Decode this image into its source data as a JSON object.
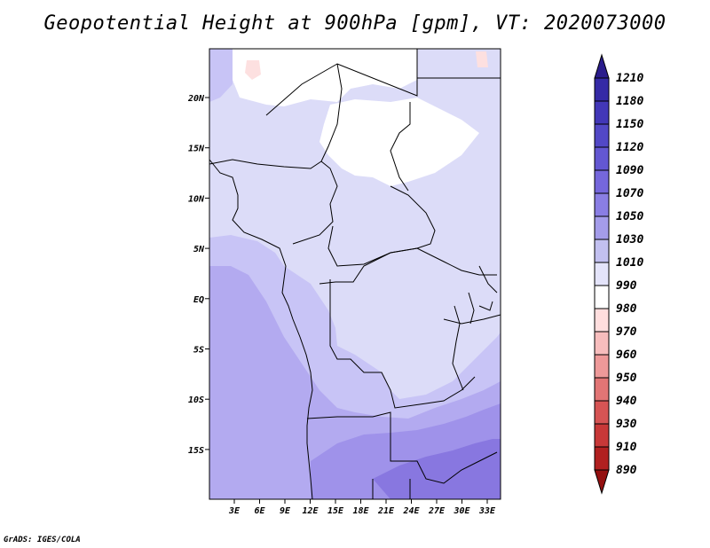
{
  "title": "Geopotential Height at 900hPa [gpm], VT: 2020073000",
  "credit": "GrADS: IGES/COLA",
  "map": {
    "lon_ticks": [
      "3E",
      "6E",
      "9E",
      "12E",
      "15E",
      "18E",
      "21E",
      "24E",
      "27E",
      "30E",
      "33E"
    ],
    "lat_ticks": [
      "20N",
      "15N",
      "10N",
      "5N",
      "EQ",
      "5S",
      "10S",
      "15S"
    ]
  },
  "colorbar": {
    "levels": [
      "1210",
      "1180",
      "1150",
      "1120",
      "1090",
      "1070",
      "1050",
      "1030",
      "1010",
      "990",
      "980",
      "970",
      "960",
      "950",
      "940",
      "930",
      "910",
      "890"
    ],
    "colors": [
      "#2a1c8c",
      "#352aa6",
      "#4237b8",
      "#5248c6",
      "#6357d2",
      "#7567dc",
      "#8a7ee4",
      "#a49cea",
      "#c2c0f0",
      "#e4e4fa",
      "#ffffff",
      "#ffdede",
      "#f7bdbd",
      "#ee9999",
      "#e27575",
      "#d65454",
      "#c83838",
      "#b12020",
      "#941010"
    ]
  },
  "field_colors": {
    "c1010": "#dcdcf8",
    "c1030": "#c8c4f6",
    "c1050": "#b3aaf0",
    "c1070": "#9f92ea",
    "c1090": "#8877e0",
    "c990": "#ffffff",
    "c980": "#fde0e0"
  }
}
